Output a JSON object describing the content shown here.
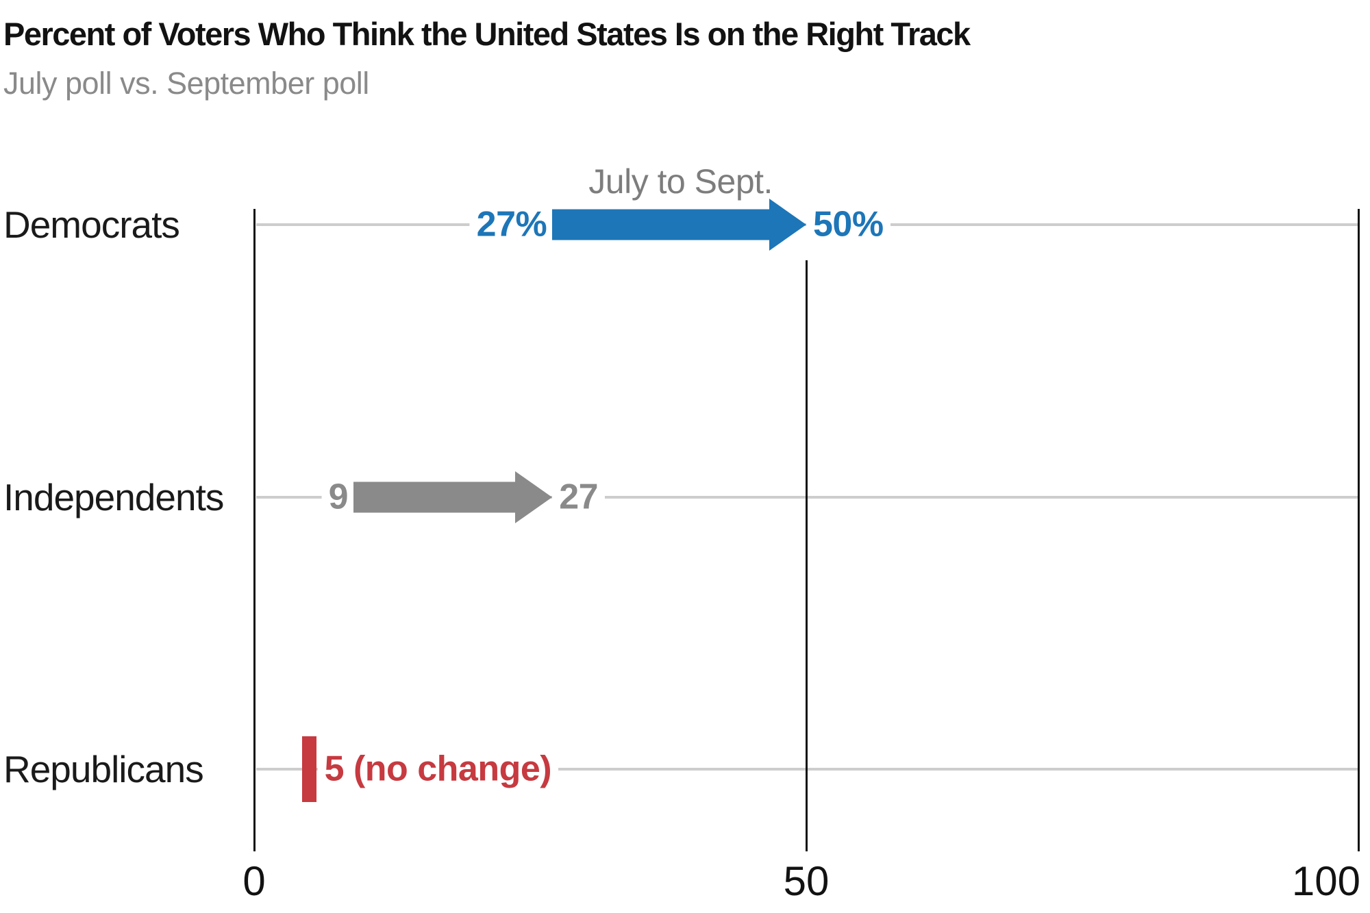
{
  "header": {
    "title": "Percent of Voters Who Think the United States Is on the Right Track",
    "subtitle": "July poll vs. September poll"
  },
  "annotation": "July to Sept.",
  "colors": {
    "democrats_blue": "#1d76b8",
    "independents_gray": "#8a8a8a",
    "republicans_red": "#c63a40",
    "gridline_gray": "#cdcdcd",
    "axis_black": "#121212",
    "title_black": "#121212",
    "subtitle_gray": "#8a8a8a",
    "annotation_gray": "#7d7d7d"
  },
  "chart_data": {
    "type": "arrow",
    "title": "Percent of Voters Who Think the United States Is on the Right Track",
    "subtitle": "July poll vs. September poll",
    "annotation": "July to Sept.",
    "categories": [
      "Democrats",
      "Independents",
      "Republicans"
    ],
    "series": [
      {
        "name": "July",
        "values": [
          27,
          9,
          5
        ]
      },
      {
        "name": "September",
        "values": [
          50,
          27,
          5
        ]
      }
    ],
    "rows": [
      {
        "category": "Democrats",
        "from": 27,
        "to": 50,
        "from_label": "27%",
        "to_label": "50%",
        "color": "#1d76b8",
        "no_change": false
      },
      {
        "category": "Independents",
        "from": 9,
        "to": 27,
        "from_label": "9",
        "to_label": "27",
        "color": "#8a8a8a",
        "no_change": false
      },
      {
        "category": "Republicans",
        "from": 5,
        "to": 5,
        "from_label": "5 (no change)",
        "to_label": "",
        "color": "#c63a40",
        "no_change": true
      }
    ],
    "xlabel": "",
    "ylabel": "",
    "xlim": [
      0,
      100
    ],
    "x_ticks": [
      0,
      50,
      100
    ],
    "x_tick_labels": [
      "0",
      "50",
      "100"
    ],
    "grid": "horizontal-row-lines",
    "legend": "none"
  }
}
